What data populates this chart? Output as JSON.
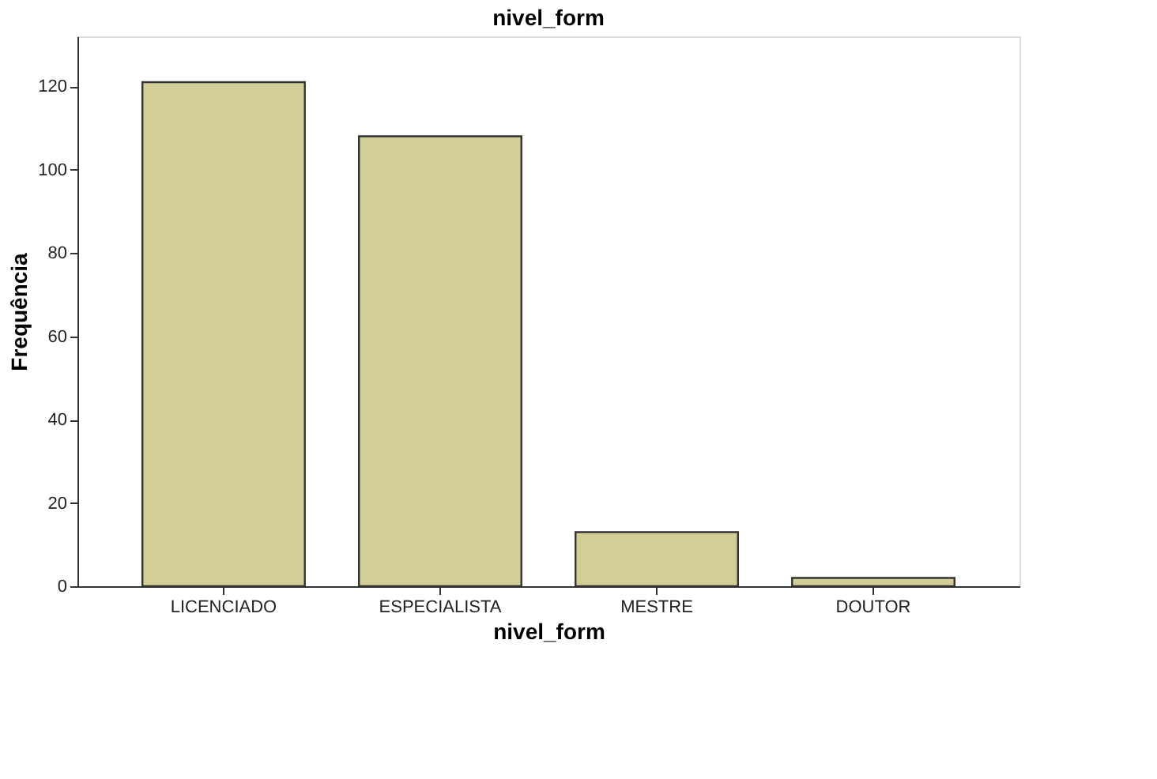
{
  "chart_data": {
    "type": "bar",
    "title": "nivel_form",
    "xlabel": "nivel_form",
    "ylabel": "Frequência",
    "categories": [
      "LICENCIADO",
      "ESPECIALISTA",
      "MESTRE",
      "DOUTOR"
    ],
    "values": [
      121,
      108,
      13,
      2
    ],
    "color": "#d2ce96",
    "ylim": [
      0,
      132
    ],
    "yticks": [
      0,
      20,
      40,
      60,
      80,
      100,
      120
    ],
    "grid": false
  }
}
